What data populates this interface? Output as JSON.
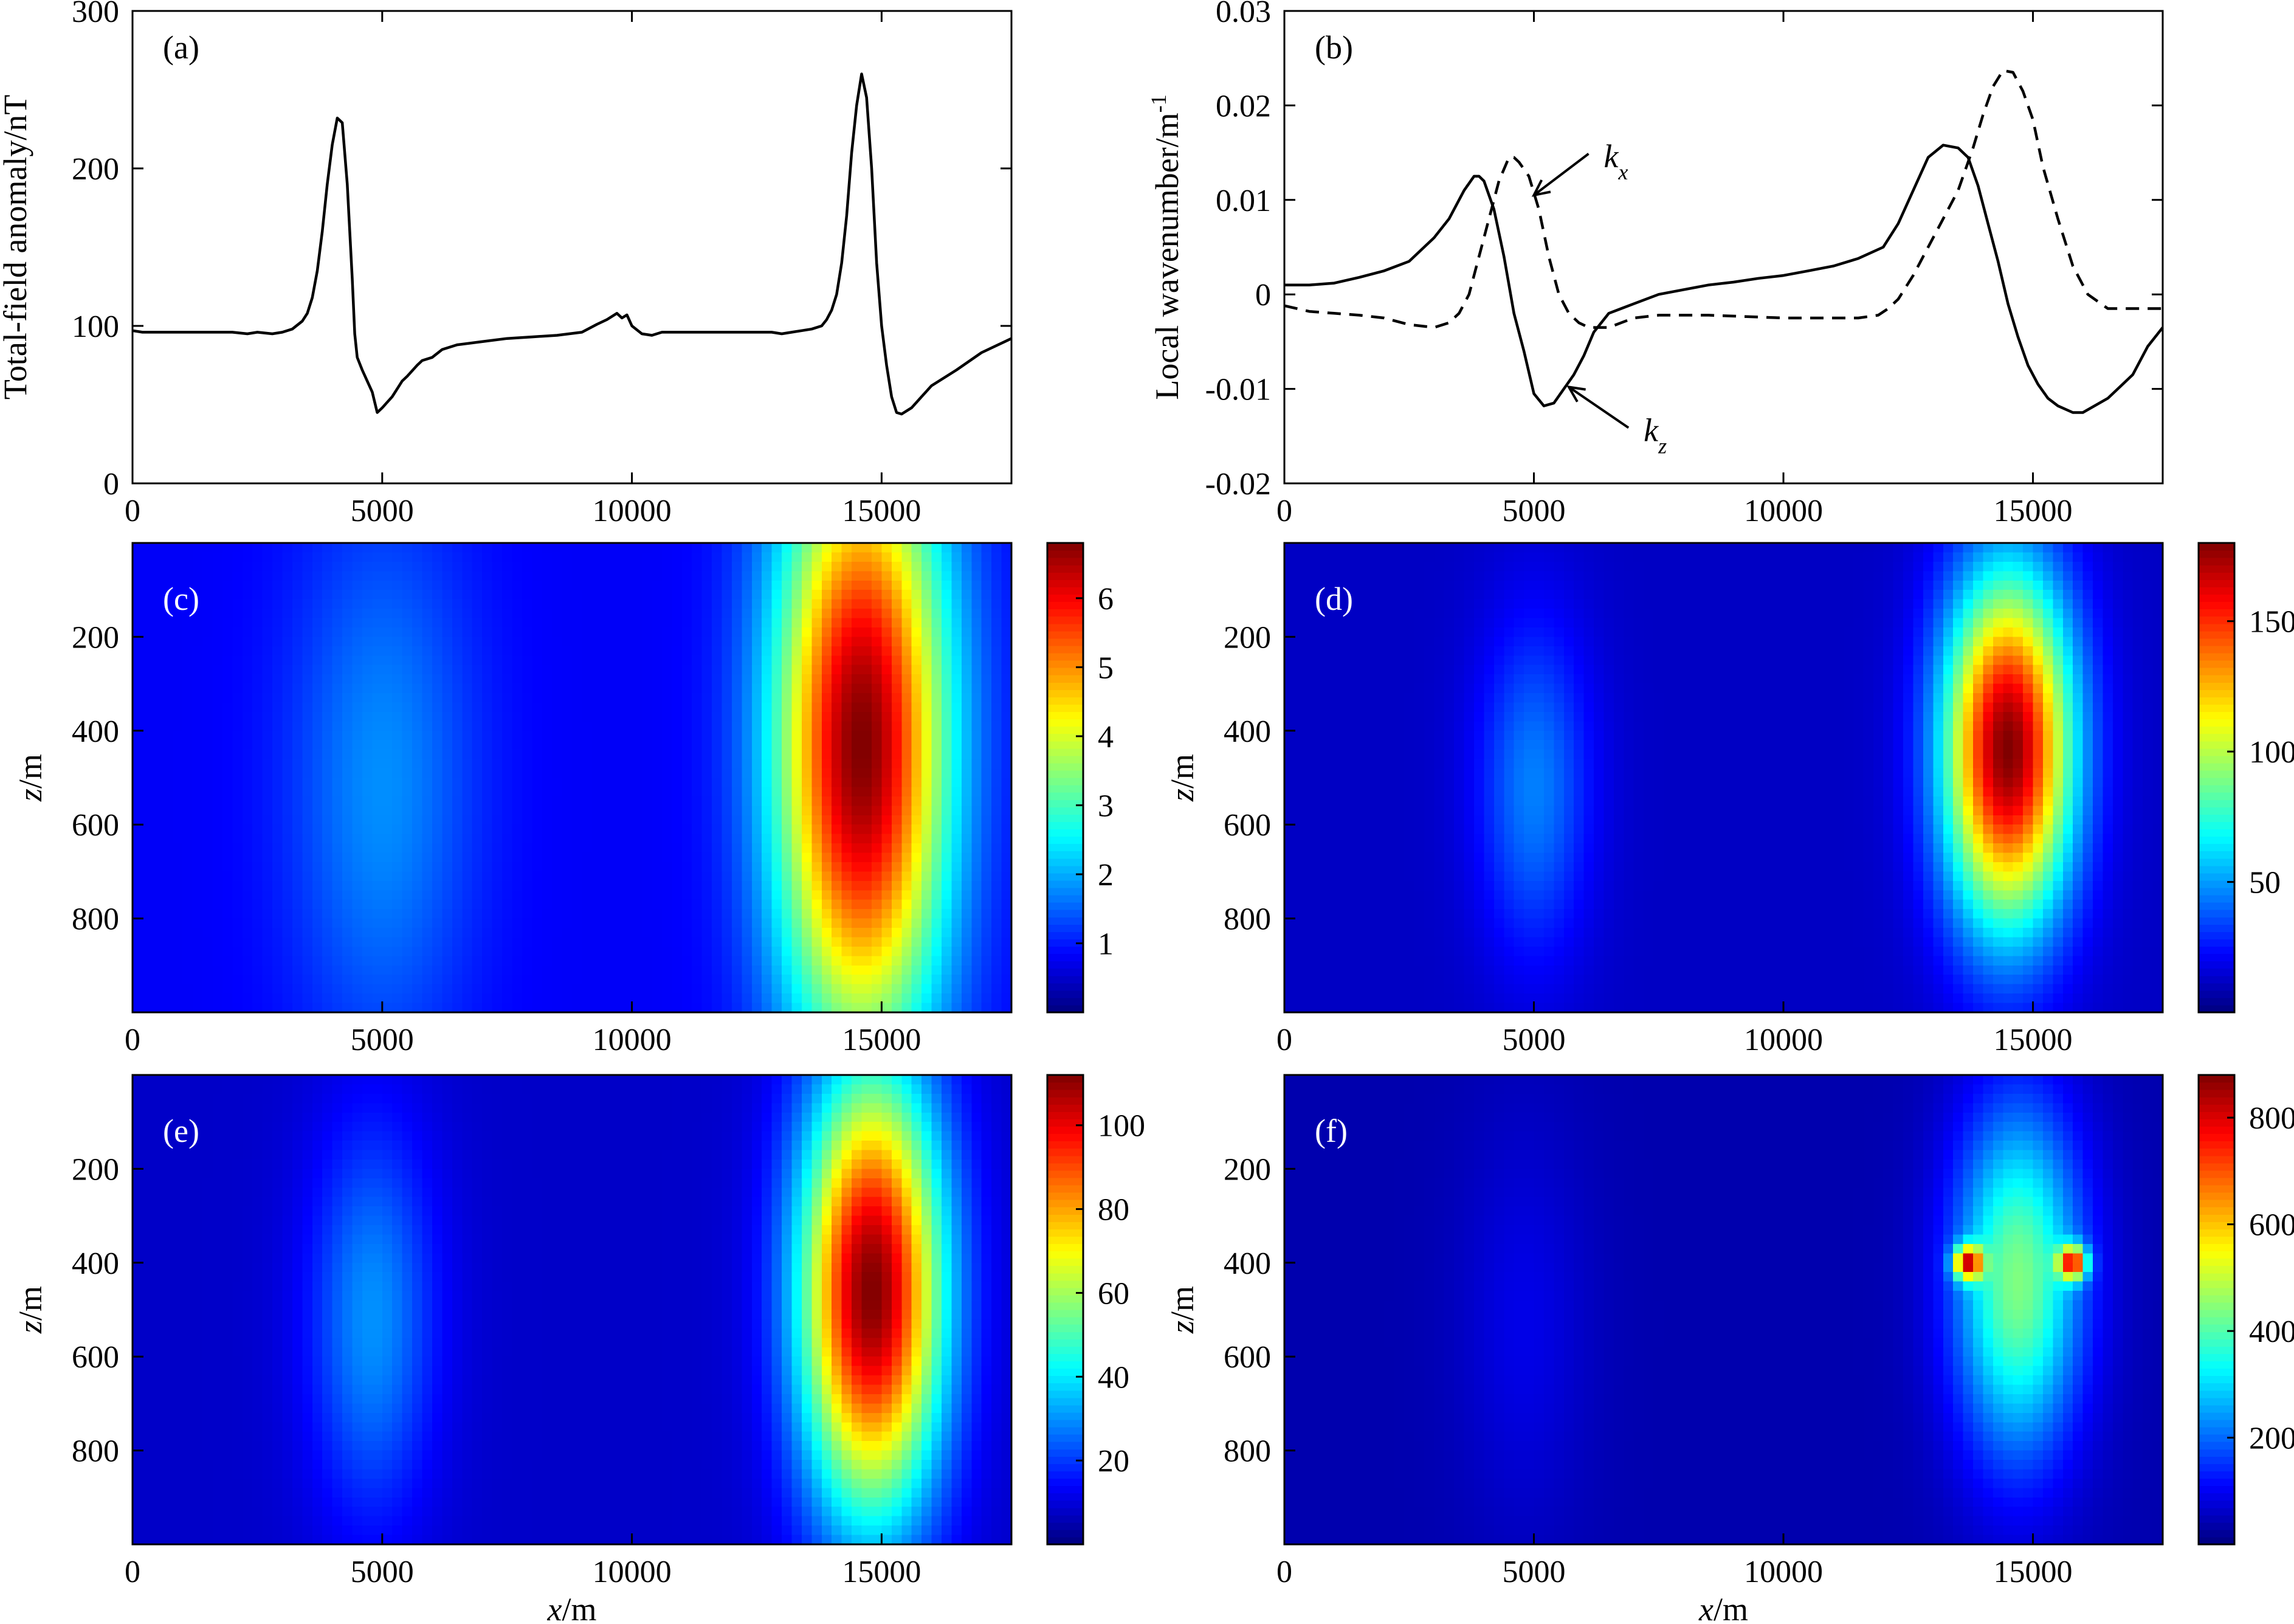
{
  "chart_data": [
    {
      "id": "a",
      "type": "line",
      "panel_label": "(a)",
      "title": "",
      "xlabel": "",
      "ylabel": "Total-field anomaly/nT",
      "xlim": [
        0,
        17600
      ],
      "ylim": [
        0,
        300
      ],
      "xticks": [
        0,
        5000,
        10000,
        15000
      ],
      "yticks": [
        0,
        100,
        200,
        300
      ],
      "series": [
        {
          "style": "solid",
          "x": [
            0,
            200,
            500,
            1000,
            1500,
            2000,
            2300,
            2500,
            2800,
            3000,
            3200,
            3400,
            3500,
            3600,
            3700,
            3800,
            3900,
            4000,
            4100,
            4200,
            4300,
            4400,
            4450,
            4500,
            4600,
            4700,
            4800,
            4900,
            5000,
            5200,
            5400,
            5500,
            5700,
            5800,
            6000,
            6200,
            6500,
            7000,
            7500,
            8000,
            8500,
            9000,
            9300,
            9500,
            9700,
            9800,
            9900,
            10000,
            10200,
            10400,
            10600,
            11000,
            11500,
            12000,
            12500,
            12800,
            13000,
            13200,
            13400,
            13600,
            13800,
            13900,
            14000,
            14100,
            14200,
            14300,
            14400,
            14500,
            14600,
            14700,
            14800,
            14900,
            15000,
            15100,
            15200,
            15300,
            15400,
            15600,
            15800,
            16000,
            16500,
            17000,
            17600
          ],
          "y": [
            97,
            96,
            96,
            96,
            96,
            96,
            95,
            96,
            95,
            96,
            98,
            103,
            108,
            118,
            135,
            160,
            190,
            215,
            232,
            229,
            190,
            130,
            95,
            80,
            72,
            65,
            58,
            45,
            48,
            55,
            65,
            68,
            75,
            78,
            80,
            85,
            88,
            90,
            92,
            93,
            94,
            96,
            101,
            104,
            108,
            105,
            107,
            100,
            95,
            94,
            96,
            96,
            96,
            96,
            96,
            96,
            95,
            96,
            97,
            98,
            100,
            104,
            110,
            120,
            140,
            170,
            210,
            240,
            260,
            245,
            200,
            140,
            100,
            75,
            55,
            45,
            44,
            48,
            55,
            62,
            72,
            83,
            92
          ]
        }
      ]
    },
    {
      "id": "b",
      "type": "line",
      "panel_label": "(b)",
      "title": "",
      "xlabel": "",
      "ylabel": "Local wavenumber/m",
      "ylabel_superscript": "-1",
      "xlim": [
        0,
        17600
      ],
      "ylim": [
        -0.02,
        0.03
      ],
      "xticks": [
        0,
        5000,
        10000,
        15000
      ],
      "yticks": [
        -0.02,
        -0.01,
        0,
        0.01,
        0.02,
        0.03
      ],
      "ytick_labels": [
        "-0.02",
        "-0.01",
        "0",
        "0.01",
        "0.02",
        "0.03"
      ],
      "annotations": [
        {
          "text": "k",
          "sub": "x",
          "x": 6400,
          "y": 0.0145,
          "arrow_to_x": 5000,
          "arrow_to_y": 0.0105
        },
        {
          "text": "k",
          "sub": "z",
          "x": 7200,
          "y": -0.0145,
          "arrow_to_x": 5700,
          "arrow_to_y": -0.0098
        }
      ],
      "series": [
        {
          "name": "kz",
          "style": "solid",
          "x": [
            0,
            500,
            1000,
            1500,
            2000,
            2500,
            3000,
            3300,
            3600,
            3800,
            3900,
            4000,
            4200,
            4400,
            4600,
            4800,
            5000,
            5200,
            5400,
            5600,
            5800,
            6000,
            6200,
            6500,
            7000,
            7500,
            8000,
            8500,
            9000,
            9500,
            10000,
            10500,
            11000,
            11500,
            12000,
            12300,
            12600,
            12900,
            13200,
            13500,
            13700,
            13900,
            14100,
            14300,
            14500,
            14700,
            14900,
            15100,
            15300,
            15500,
            15800,
            16000,
            16500,
            17000,
            17300,
            17600
          ],
          "y": [
            0.001,
            0.001,
            0.0012,
            0.0018,
            0.0025,
            0.0035,
            0.006,
            0.008,
            0.011,
            0.0125,
            0.0125,
            0.012,
            0.009,
            0.004,
            -0.002,
            -0.006,
            -0.0105,
            -0.0118,
            -0.0115,
            -0.01,
            -0.0085,
            -0.0065,
            -0.004,
            -0.002,
            -0.001,
            0.0,
            0.0005,
            0.001,
            0.0013,
            0.0017,
            0.002,
            0.0025,
            0.003,
            0.0038,
            0.005,
            0.0075,
            0.011,
            0.0145,
            0.0158,
            0.0155,
            0.0145,
            0.0115,
            0.0075,
            0.0035,
            -0.001,
            -0.0045,
            -0.0075,
            -0.0095,
            -0.011,
            -0.0118,
            -0.0125,
            -0.0125,
            -0.011,
            -0.0085,
            -0.0055,
            -0.0035
          ]
        },
        {
          "name": "kx",
          "style": "dashed",
          "x": [
            0,
            500,
            1000,
            1500,
            2000,
            2500,
            3000,
            3300,
            3500,
            3700,
            3900,
            4100,
            4300,
            4500,
            4600,
            4700,
            4900,
            5100,
            5300,
            5500,
            5700,
            5900,
            6100,
            6300,
            6500,
            7000,
            7500,
            8000,
            8500,
            9000,
            10000,
            11000,
            11500,
            11900,
            12100,
            12300,
            12600,
            12900,
            13200,
            13500,
            13800,
            14000,
            14200,
            14400,
            14600,
            14800,
            15000,
            15200,
            15500,
            15800,
            16100,
            16500,
            17000,
            17600
          ],
          "y": [
            -0.0012,
            -0.0018,
            -0.002,
            -0.0022,
            -0.0025,
            -0.0032,
            -0.0035,
            -0.003,
            -0.002,
            0.0,
            0.004,
            0.008,
            0.012,
            0.0145,
            0.0145,
            0.014,
            0.0125,
            0.009,
            0.004,
            0.0,
            -0.002,
            -0.003,
            -0.0035,
            -0.0035,
            -0.0035,
            -0.0025,
            -0.0022,
            -0.0022,
            -0.0022,
            -0.0023,
            -0.0025,
            -0.0025,
            -0.0025,
            -0.0022,
            -0.0015,
            -0.0005,
            0.002,
            0.005,
            0.008,
            0.011,
            0.0155,
            0.019,
            0.022,
            0.0237,
            0.0235,
            0.0215,
            0.0185,
            0.0135,
            0.008,
            0.003,
            0.0,
            -0.0015,
            -0.0015,
            -0.0015
          ]
        }
      ]
    },
    {
      "id": "c",
      "type": "heatmap",
      "panel_label": "(c)",
      "title": "",
      "xlabel": "",
      "ylabel": "z/m",
      "xlim": [
        0,
        17600
      ],
      "zlim": [
        0,
        1000
      ],
      "z_reversed": true,
      "xticks": [
        0,
        5000,
        10000,
        15000
      ],
      "yticks": [
        200,
        400,
        600,
        800
      ],
      "colorbar": {
        "min": 0,
        "max": 6.8,
        "ticks": [
          1,
          2,
          3,
          4,
          5,
          6
        ]
      },
      "sources": [
        {
          "x": 5000,
          "z": 520,
          "sx": 1300,
          "sz": 420,
          "peak": 1.8
        },
        {
          "x": 14600,
          "z": 430,
          "sx": 1200,
          "sz": 460,
          "peak": 6.8
        }
      ],
      "baseline": 0.8
    },
    {
      "id": "d",
      "type": "heatmap",
      "panel_label": "(d)",
      "title": "",
      "xlabel": "",
      "ylabel": "z/m",
      "xlim": [
        0,
        17600
      ],
      "zlim": [
        0,
        1000
      ],
      "z_reversed": true,
      "xticks": [
        0,
        5000,
        10000,
        15000
      ],
      "yticks": [
        200,
        400,
        600,
        800
      ],
      "colorbar": {
        "min": 0,
        "max": 180,
        "ticks": [
          50,
          100,
          150
        ]
      },
      "sources": [
        {
          "x": 5000,
          "z": 520,
          "sx": 800,
          "sz": 250,
          "peak": 45
        },
        {
          "x": 14500,
          "z": 440,
          "sx": 900,
          "sz": 260,
          "peak": 180
        }
      ],
      "baseline": 12
    },
    {
      "id": "e",
      "type": "heatmap",
      "panel_label": "(e)",
      "title": "",
      "xlabel": "x/m",
      "ylabel": "z/m",
      "xlim": [
        0,
        17600
      ],
      "zlim": [
        0,
        1000
      ],
      "z_reversed": true,
      "xticks": [
        0,
        5000,
        10000,
        15000
      ],
      "yticks": [
        200,
        400,
        600,
        800
      ],
      "colorbar": {
        "min": 0,
        "max": 112,
        "ticks": [
          20,
          40,
          60,
          80,
          100
        ]
      },
      "sources": [
        {
          "x": 4800,
          "z": 520,
          "sx": 900,
          "sz": 300,
          "peak": 30
        },
        {
          "x": 14800,
          "z": 460,
          "sx": 1000,
          "sz": 330,
          "peak": 112
        }
      ],
      "baseline": 8
    },
    {
      "id": "f",
      "type": "heatmap",
      "panel_label": "(f)",
      "title": "",
      "xlabel": "x/m",
      "ylabel": "z/m",
      "xlim": [
        0,
        17600
      ],
      "zlim": [
        0,
        1000
      ],
      "z_reversed": true,
      "xticks": [
        0,
        5000,
        10000,
        15000
      ],
      "yticks": [
        200,
        400,
        600,
        800
      ],
      "colorbar": {
        "min": 0,
        "max": 880,
        "ticks": [
          200,
          400,
          600,
          800
        ]
      },
      "sources": [
        {
          "x": 4800,
          "z": 530,
          "sx": 900,
          "sz": 300,
          "peak": 90
        },
        {
          "x": 14700,
          "z": 440,
          "sx": 900,
          "sz": 260,
          "peak": 440
        },
        {
          "x": 13700,
          "z": 400,
          "sx": 200,
          "sz": 25,
          "peak": 640
        },
        {
          "x": 15800,
          "z": 400,
          "sx": 200,
          "sz": 25,
          "peak": 640
        }
      ],
      "baseline": 40
    }
  ]
}
